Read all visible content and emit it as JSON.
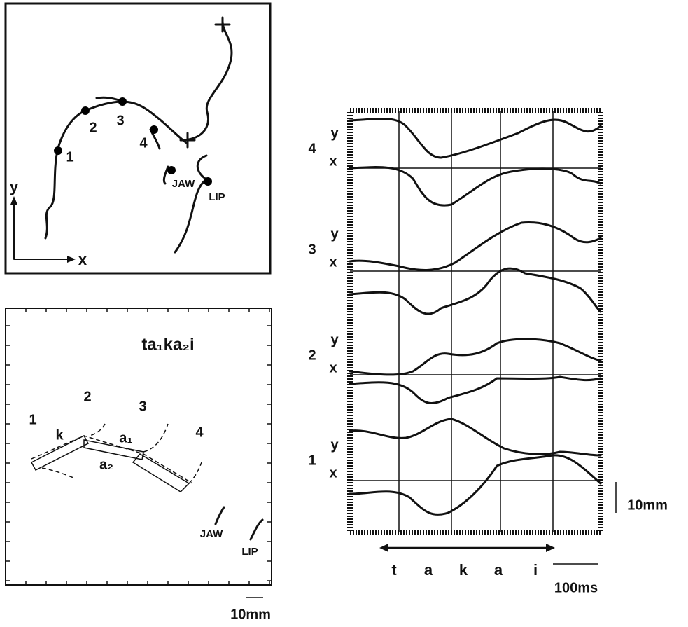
{
  "top_panel": {
    "axis_y": "y",
    "axis_x": "x",
    "points": [
      "1",
      "2",
      "3",
      "4"
    ],
    "jaw": "JAW",
    "lip": "LIP"
  },
  "bottom_panel": {
    "title": "ta₁ka₂i",
    "positions": [
      "1",
      "2",
      "3",
      "4"
    ],
    "segments": [
      "k",
      "a₁",
      "a₂"
    ],
    "jaw": "JAW",
    "lip": "LIP",
    "scale": "10mm"
  },
  "traces": {
    "channels": [
      {
        "label": "4",
        "y": "y",
        "x": "x"
      },
      {
        "label": "3",
        "y": "y",
        "x": "x"
      },
      {
        "label": "2",
        "y": "y",
        "x": "x"
      },
      {
        "label": "1",
        "y": "y",
        "x": "x"
      }
    ],
    "phonemes": [
      "t",
      "a",
      "k",
      "a",
      "i"
    ],
    "time_scale": "100ms",
    "amplitude_scale": "10mm"
  }
}
